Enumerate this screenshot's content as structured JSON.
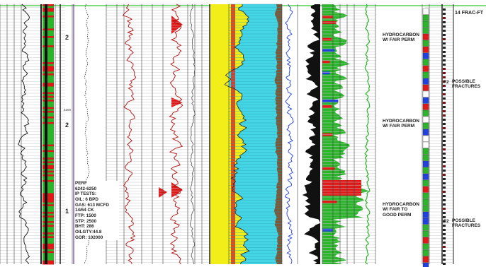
{
  "header": {
    "frac_track_title": "14 FRAC-FT"
  },
  "zone_markers": [
    "2",
    "2",
    "1"
  ],
  "depth_marker": "5200",
  "perf_box": {
    "lines": [
      "PERF",
      "6242-6250",
      "IP TESTS:",
      "OIL: 6 BPD",
      "GAS: 613 MCFD",
      "14/64 CK",
      "FTP: 1500",
      "STP: 2500",
      "BHT: 286",
      "OILGTY:44.8",
      "GOR: 102000"
    ]
  },
  "interpretations": [
    {
      "text": "HYDROCARBON\nW/ FAIR PERM"
    },
    {
      "text": "HYDROCARBON\nW/ FAIR PERM"
    },
    {
      "text": "HYDROCARBON\nW/ FAIR TO\nGOOD PERM"
    }
  ],
  "fracture_flags": [
    {
      "code": "F2",
      "text": "POSSIBLE\nFRACTURES"
    },
    {
      "code": "F2",
      "text": "POSSIBLE\nFRACTURES"
    }
  ],
  "colors": {
    "green": "#2bb52b",
    "red": "#e01818",
    "yellow": "#f2ee1a",
    "cyan": "#45d6e6",
    "blue": "#2040e0",
    "black": "#111111",
    "brown": "#7a5a3a"
  }
}
